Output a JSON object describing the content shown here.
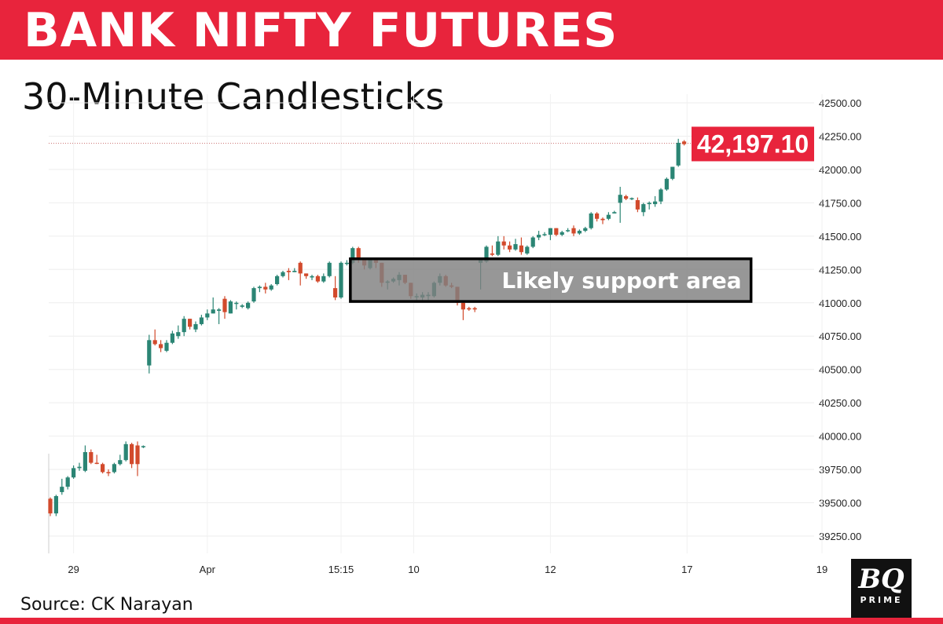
{
  "header": {
    "title": "BANK NIFTY FUTURES",
    "subtitle": "30-Minute Candlesticks"
  },
  "footer": {
    "source": "Source: CK Narayan",
    "logo_text": "BQ PRIME"
  },
  "colors": {
    "banner": "#e8243c",
    "up": "#2b8574",
    "down": "#d24a2c",
    "price_label": "#e8243c"
  },
  "chart_data": {
    "type": "candlestick",
    "title": "",
    "ylim": [
      39125,
      42625
    ],
    "y_ticks": [
      39250,
      39500,
      39750,
      40000,
      40250,
      40500,
      40750,
      41000,
      41250,
      41500,
      41750,
      42000,
      42250,
      42500
    ],
    "y_tick_labels": [
      "39250.00",
      "39500.00",
      "39750.00",
      "40000.00",
      "40250.00",
      "40500.00",
      "40750.00",
      "41000.00",
      "41250.00",
      "41500.00",
      "41750.00",
      "42000.00",
      "42250.00",
      "42500.00"
    ],
    "x_ticks": [
      {
        "bar": 4,
        "label": "29"
      },
      {
        "bar": 27,
        "label": "Apr"
      },
      {
        "bar": 50,
        "label": "15:15"
      },
      {
        "bar": 62.5,
        "label": "10"
      },
      {
        "bar": 86,
        "label": "12"
      },
      {
        "bar": 109.5,
        "label": "17"
      },
      {
        "bar": 132.7,
        "label": "19"
      }
    ],
    "grid": true,
    "last_price": 42197.1,
    "last_price_label": "42,197.10",
    "annotation": {
      "text": "Likely support area",
      "bar_from": 51.6,
      "bar_to": 120.5,
      "price_low": 41010,
      "price_high": 41330
    },
    "ohlc": [
      [
        39530,
        39540,
        39400,
        39420
      ],
      [
        39420,
        39560,
        39400,
        39550
      ],
      [
        39580,
        39680,
        39560,
        39620
      ],
      [
        39620,
        39700,
        39600,
        39690
      ],
      [
        39690,
        39780,
        39680,
        39760
      ],
      [
        39760,
        39800,
        39740,
        39770
      ],
      [
        39740,
        39930,
        39730,
        39880
      ],
      [
        39880,
        39900,
        39790,
        39800
      ],
      [
        39800,
        39860,
        39790,
        39795
      ],
      [
        39790,
        39800,
        39720,
        39730
      ],
      [
        39730,
        39750,
        39700,
        39725
      ],
      [
        39730,
        39800,
        39720,
        39790
      ],
      [
        39790,
        39860,
        39780,
        39820
      ],
      [
        39820,
        39960,
        39810,
        39940
      ],
      [
        39940,
        39950,
        39760,
        39790
      ],
      [
        39930,
        39960,
        39700,
        39790
      ],
      [
        39920,
        39930,
        39910,
        39925
      ],
      [
        40530,
        40760,
        40470,
        40720
      ],
      [
        40720,
        40800,
        40680,
        40690
      ],
      [
        40690,
        40720,
        40630,
        40660
      ],
      [
        40640,
        40720,
        40630,
        40700
      ],
      [
        40700,
        40790,
        40690,
        40770
      ],
      [
        40750,
        40830,
        40730,
        40780
      ],
      [
        40780,
        40900,
        40750,
        40880
      ],
      [
        40880,
        40880,
        40800,
        40820
      ],
      [
        40800,
        40860,
        40780,
        40840
      ],
      [
        40840,
        40910,
        40830,
        40890
      ],
      [
        40890,
        40950,
        40870,
        40920
      ],
      [
        40920,
        41040,
        40920,
        40950
      ],
      [
        40940,
        40960,
        40840,
        40950
      ],
      [
        41030,
        41050,
        40880,
        40930
      ],
      [
        40920,
        41020,
        40920,
        41010
      ],
      [
        41000,
        41010,
        40950,
        41000
      ],
      [
        40970,
        40990,
        40960,
        40980
      ],
      [
        40960,
        41010,
        40950,
        41000
      ],
      [
        41010,
        41120,
        41000,
        41110
      ],
      [
        41110,
        41130,
        41080,
        41120
      ],
      [
        41120,
        41150,
        41070,
        41100
      ],
      [
        41100,
        41140,
        41090,
        41130
      ],
      [
        41140,
        41210,
        41130,
        41200
      ],
      [
        41200,
        41240,
        41190,
        41230
      ],
      [
        41240,
        41260,
        41170,
        41230
      ],
      [
        41230,
        41260,
        41230,
        41240
      ],
      [
        41300,
        41310,
        41130,
        41220
      ],
      [
        41220,
        41220,
        41180,
        41200
      ],
      [
        41190,
        41210,
        41170,
        41200
      ],
      [
        41200,
        41210,
        41150,
        41160
      ],
      [
        41160,
        41220,
        41150,
        41200
      ],
      [
        41200,
        41310,
        41190,
        41300
      ],
      [
        41110,
        41200,
        41020,
        41040
      ],
      [
        41040,
        41310,
        41030,
        41300
      ],
      [
        41300,
        41320,
        41280,
        41300
      ],
      [
        41300,
        41420,
        41290,
        41410
      ],
      [
        41410,
        41420,
        41300,
        41330
      ],
      [
        41330,
        41340,
        41250,
        41280
      ],
      [
        41260,
        41340,
        41250,
        41320
      ],
      [
        41320,
        41330,
        41260,
        41300
      ],
      [
        41300,
        41300,
        41120,
        41150
      ],
      [
        41150,
        41170,
        41100,
        41160
      ],
      [
        41160,
        41190,
        41150,
        41180
      ],
      [
        41170,
        41230,
        41130,
        41210
      ],
      [
        41210,
        41210,
        41140,
        41150
      ],
      [
        41150,
        41150,
        41030,
        41050
      ],
      [
        41050,
        41070,
        41020,
        41050
      ],
      [
        41040,
        41080,
        41010,
        41060
      ],
      [
        41050,
        41080,
        41020,
        41060
      ],
      [
        41050,
        41160,
        41040,
        41150
      ],
      [
        41150,
        41220,
        41130,
        41200
      ],
      [
        41200,
        41210,
        41120,
        41130
      ],
      [
        41130,
        41150,
        41110,
        41120
      ],
      [
        41120,
        41120,
        40980,
        41000
      ],
      [
        41000,
        41010,
        40870,
        40950
      ],
      [
        40960,
        40970,
        40940,
        40950
      ],
      [
        40960,
        40970,
        40930,
        40950
      ],
      [
        41300,
        41330,
        41100,
        41320
      ],
      [
        41310,
        41430,
        41300,
        41420
      ],
      [
        41370,
        41430,
        41350,
        41360
      ],
      [
        41360,
        41500,
        41350,
        41460
      ],
      [
        41460,
        41500,
        41400,
        41430
      ],
      [
        41430,
        41460,
        41380,
        41400
      ],
      [
        41400,
        41480,
        41390,
        41440
      ],
      [
        41430,
        41490,
        41360,
        41380
      ],
      [
        41370,
        41430,
        41360,
        41420
      ],
      [
        41420,
        41500,
        41410,
        41490
      ],
      [
        41490,
        41540,
        41470,
        41510
      ],
      [
        41510,
        41530,
        41500,
        41515
      ],
      [
        41510,
        41560,
        41470,
        41560
      ],
      [
        41560,
        41560,
        41500,
        41510
      ],
      [
        41510,
        41540,
        41500,
        41530
      ],
      [
        41540,
        41560,
        41530,
        41545
      ],
      [
        41560,
        41580,
        41500,
        41520
      ],
      [
        41520,
        41550,
        41510,
        41540
      ],
      [
        41540,
        41570,
        41530,
        41560
      ],
      [
        41560,
        41680,
        41550,
        41670
      ],
      [
        41670,
        41680,
        41610,
        41630
      ],
      [
        41630,
        41640,
        41590,
        41620
      ],
      [
        41630,
        41680,
        41620,
        41660
      ],
      [
        41670,
        41690,
        41670,
        41680
      ],
      [
        41750,
        41870,
        41600,
        41810
      ],
      [
        41800,
        41810,
        41770,
        41780
      ],
      [
        41780,
        41790,
        41770,
        41785
      ],
      [
        41770,
        41790,
        41680,
        41700
      ],
      [
        41680,
        41750,
        41650,
        41740
      ],
      [
        41740,
        41760,
        41700,
        41750
      ],
      [
        41740,
        41800,
        41720,
        41760
      ],
      [
        41760,
        41860,
        41740,
        41850
      ],
      [
        41850,
        41940,
        41840,
        41930
      ],
      [
        41930,
        42020,
        41920,
        42020
      ],
      [
        42030,
        42230,
        42020,
        42200
      ],
      [
        42210,
        42220,
        42180,
        42190
      ]
    ]
  }
}
